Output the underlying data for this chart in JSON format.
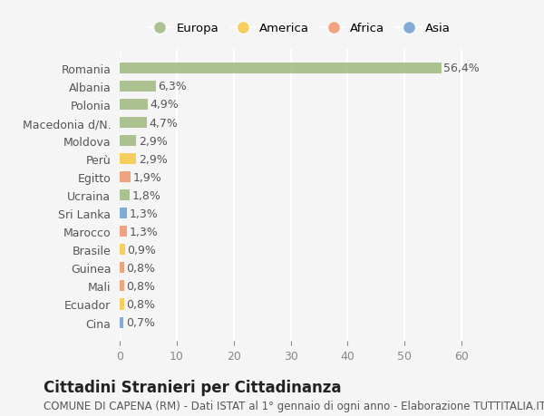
{
  "countries": [
    "Romania",
    "Albania",
    "Polonia",
    "Macedonia d/N.",
    "Moldova",
    "Perù",
    "Egitto",
    "Ucraina",
    "Sri Lanka",
    "Marocco",
    "Brasile",
    "Guinea",
    "Mali",
    "Ecuador",
    "Cina"
  ],
  "values": [
    56.4,
    6.3,
    4.9,
    4.7,
    2.9,
    2.9,
    1.9,
    1.8,
    1.3,
    1.3,
    0.9,
    0.8,
    0.8,
    0.8,
    0.7
  ],
  "labels": [
    "56,4%",
    "6,3%",
    "4,9%",
    "4,7%",
    "2,9%",
    "2,9%",
    "1,9%",
    "1,8%",
    "1,3%",
    "1,3%",
    "0,9%",
    "0,8%",
    "0,8%",
    "0,8%",
    "0,7%"
  ],
  "continents": [
    "Europa",
    "Europa",
    "Europa",
    "Europa",
    "Europa",
    "America",
    "Africa",
    "Europa",
    "Asia",
    "Africa",
    "America",
    "Africa",
    "Africa",
    "America",
    "Asia"
  ],
  "continent_colors": {
    "Europa": "#9eba7e",
    "America": "#f5c842",
    "Africa": "#f0956a",
    "Asia": "#6a9ecf"
  },
  "legend_order": [
    "Europa",
    "America",
    "Africa",
    "Asia"
  ],
  "xlim": [
    0,
    63
  ],
  "xticks": [
    0,
    10,
    20,
    30,
    40,
    50,
    60
  ],
  "background_color": "#f5f5f5",
  "grid_color": "#ffffff",
  "title": "Cittadini Stranieri per Cittadinanza",
  "subtitle": "COMUNE DI CAPENA (RM) - Dati ISTAT al 1° gennaio di ogni anno - Elaborazione TUTTITALIA.IT",
  "bar_height": 0.6,
  "label_fontsize": 9,
  "tick_fontsize": 9,
  "title_fontsize": 12,
  "subtitle_fontsize": 8.5
}
